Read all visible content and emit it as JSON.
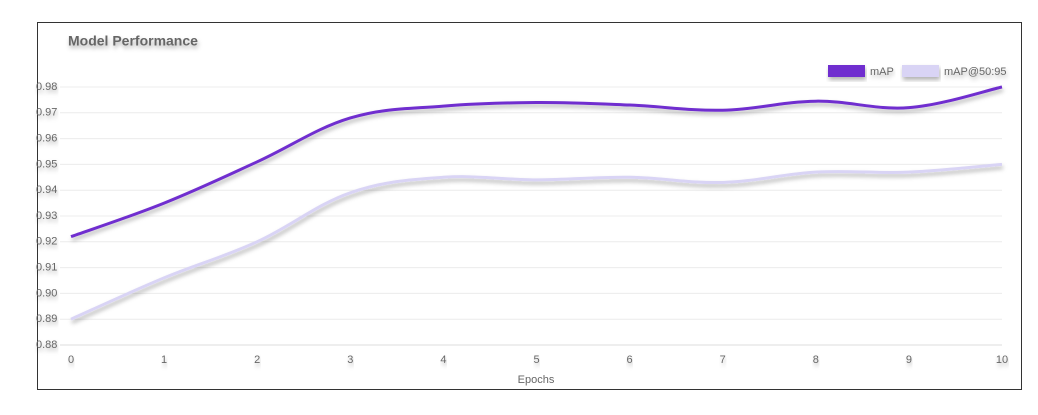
{
  "chart_data": {
    "type": "line",
    "title": "Model Performance",
    "x_label": "Epochs",
    "x": [
      0,
      1,
      2,
      3,
      4,
      5,
      6,
      7,
      8,
      9,
      10
    ],
    "xlim": [
      0,
      10
    ],
    "xticks": [
      0,
      1,
      2,
      3,
      4,
      5,
      6,
      7,
      8,
      9,
      10
    ],
    "ylim": [
      0.88,
      0.98
    ],
    "yticks": [
      0.88,
      0.89,
      {
        "value": 0.9,
        "label": "0.90"
      },
      0.91,
      0.92,
      0.93,
      0.94,
      0.95,
      0.96,
      0.97,
      0.98
    ],
    "grid": true,
    "legend": "top-right",
    "series": [
      {
        "name": "mAP",
        "color": "#6f2ecf",
        "values": [
          0.922,
          0.935,
          0.951,
          0.968,
          0.9726,
          0.974,
          0.973,
          0.971,
          0.9745,
          0.972,
          0.98
        ]
      },
      {
        "name": "mAP@50:95",
        "color": "#d9d4f5",
        "values": [
          0.89,
          0.906,
          0.92,
          0.939,
          0.945,
          0.944,
          0.945,
          0.943,
          0.947,
          0.947,
          0.95
        ]
      }
    ]
  }
}
